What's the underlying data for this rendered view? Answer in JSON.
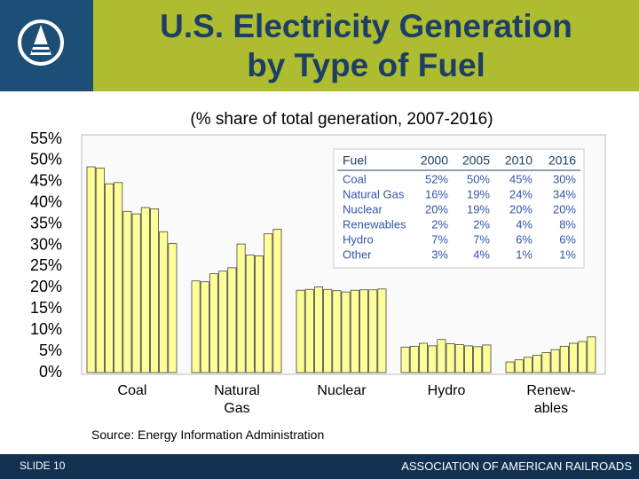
{
  "chart_data": {
    "type": "bar",
    "title": "U.S. Electricity Generation by Type of Fuel",
    "subtitle": "(% share of total generation, 2007-2016)",
    "categories": [
      "Coal",
      "Natural Gas",
      "Nuclear",
      "Hydro",
      "Renew-ables"
    ],
    "values": [
      [
        48.5,
        48.2,
        44.5,
        44.8,
        38,
        37.4,
        38.9,
        38.6,
        33.2,
        30.4
      ],
      [
        21.6,
        21.4,
        23.3,
        23.9,
        24.7,
        30.3,
        27.7,
        27.5,
        32.7,
        33.8
      ],
      [
        19.4,
        19.6,
        20.2,
        19.6,
        19.3,
        19.0,
        19.4,
        19.5,
        19.5,
        19.7
      ],
      [
        6.0,
        6.2,
        6.9,
        6.3,
        7.8,
        6.8,
        6.6,
        6.3,
        6.1,
        6.5
      ],
      [
        2.5,
        3.0,
        3.6,
        4.1,
        4.7,
        5.4,
        6.2,
        6.9,
        7.3,
        8.4
      ]
    ],
    "color": "#ffff99",
    "ylim": [
      0,
      55
    ],
    "yticks": [
      {
        "value": 0,
        "label": "0%"
      },
      {
        "value": 5,
        "label": "5%"
      },
      {
        "value": 10,
        "label": "10%"
      },
      {
        "value": 15,
        "label": "15%"
      },
      {
        "value": 20,
        "label": "20%"
      },
      {
        "value": 25,
        "label": "25%"
      },
      {
        "value": 30,
        "label": "30%"
      },
      {
        "value": 35,
        "label": "35%"
      },
      {
        "value": 40,
        "label": "40%"
      },
      {
        "value": 45,
        "label": "45%"
      },
      {
        "value": 50,
        "label": "50%"
      },
      {
        "value": 55,
        "label": "55%"
      }
    ],
    "source": "Source: Energy Information Administration",
    "table": {
      "header": [
        "Fuel",
        "2000",
        "2005",
        "2010",
        "2016"
      ],
      "rows": [
        [
          "Coal",
          "52%",
          "50%",
          "45%",
          "30%"
        ],
        [
          "Natural Gas",
          "16%",
          "19%",
          "24%",
          "34%"
        ],
        [
          "Nuclear",
          "20%",
          "19%",
          "20%",
          "20%"
        ],
        [
          "Renewables",
          "2%",
          "2%",
          "4%",
          "8%"
        ],
        [
          "Hydro",
          "7%",
          "7%",
          "6%",
          "6%"
        ],
        [
          "Other",
          "3%",
          "4%",
          "1%",
          "1%"
        ]
      ]
    }
  },
  "footer": {
    "slide": "SLIDE 10",
    "organization": "ASSOCIATION OF AMERICAN RAILROADS"
  }
}
